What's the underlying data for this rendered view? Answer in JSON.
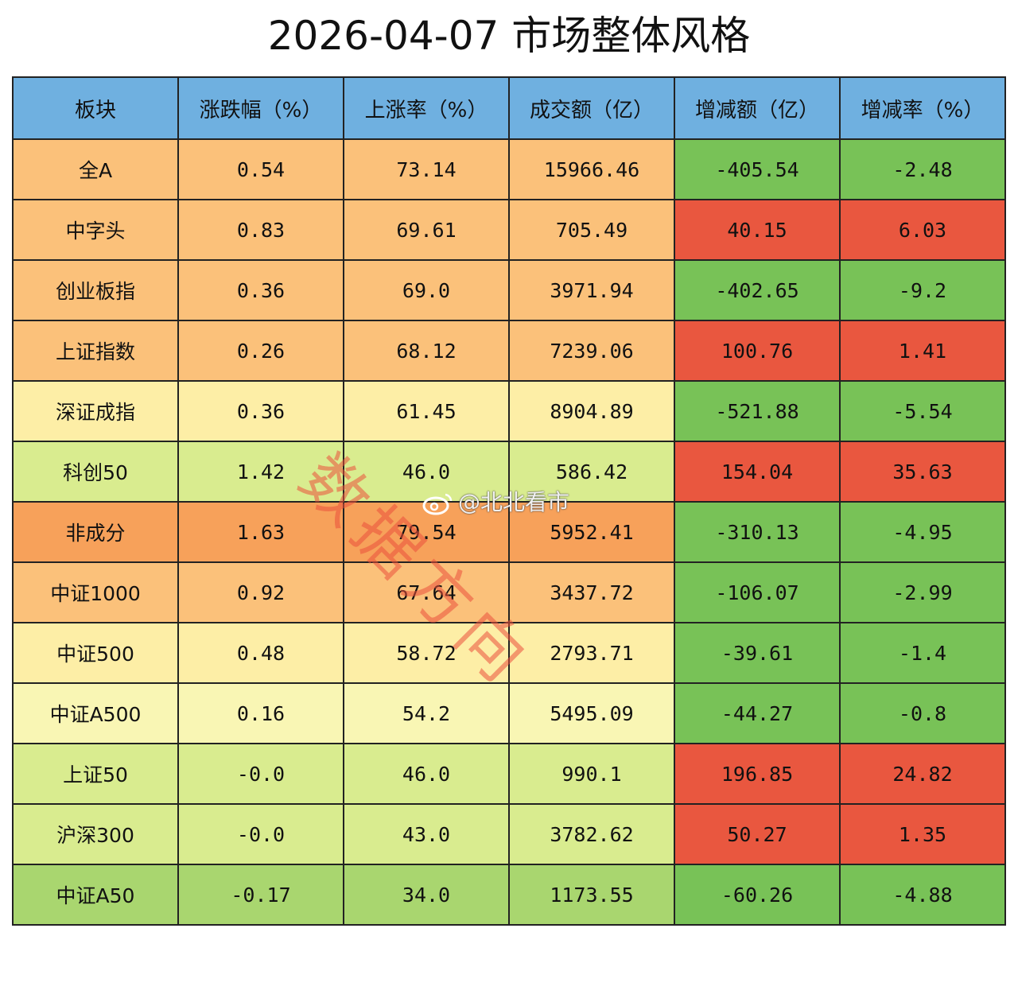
{
  "title": "2026-04-07 市场整体风格",
  "colors": {
    "header_bg": "#6fb0e0",
    "positive_red": "#e9573f",
    "negative_green": "#78c257",
    "orange_dark": "#f7a15a",
    "orange": "#fbc17a",
    "light_yellow": "#fdeea6",
    "pale_yellow": "#f9f6b4",
    "light_green": "#d9ec8f",
    "green": "#a9d66f"
  },
  "chart_data": {
    "type": "table",
    "title": "2026-04-07 市场整体风格",
    "columns": [
      "板块",
      "涨跌幅（%）",
      "上涨率（%）",
      "成交额（亿）",
      "增减额（亿）",
      "增减率（%）"
    ],
    "rows": [
      [
        "全A",
        "0.54",
        "73.14",
        "15966.46",
        "-405.54",
        "-2.48"
      ],
      [
        "中字头",
        "0.83",
        "69.61",
        "705.49",
        "40.15",
        "6.03"
      ],
      [
        "创业板指",
        "0.36",
        "69.0",
        "3971.94",
        "-402.65",
        "-9.2"
      ],
      [
        "上证指数",
        "0.26",
        "68.12",
        "7239.06",
        "100.76",
        "1.41"
      ],
      [
        "深证成指",
        "0.36",
        "61.45",
        "8904.89",
        "-521.88",
        "-5.54"
      ],
      [
        "科创50",
        "1.42",
        "46.0",
        "586.42",
        "154.04",
        "35.63"
      ],
      [
        "非成分",
        "1.63",
        "79.54",
        "5952.41",
        "-310.13",
        "-4.95"
      ],
      [
        "中证1000",
        "0.92",
        "67.64",
        "3437.72",
        "-106.07",
        "-2.99"
      ],
      [
        "中证500",
        "0.48",
        "58.72",
        "2793.71",
        "-39.61",
        "-1.4"
      ],
      [
        "中证A500",
        "0.16",
        "54.2",
        "5495.09",
        "-44.27",
        "-0.8"
      ],
      [
        "上证50",
        "-0.0",
        "46.0",
        "990.1",
        "196.85",
        "24.82"
      ],
      [
        "沪深300",
        "-0.0",
        "43.0",
        "3782.62",
        "50.27",
        "1.35"
      ],
      [
        "中证A50",
        "-0.17",
        "34.0",
        "1173.55",
        "-60.26",
        "-4.88"
      ]
    ],
    "row_colors": [
      "#fbc17a",
      "#fbc17a",
      "#fbc17a",
      "#fbc17a",
      "#fdeea6",
      "#d9ec8f",
      "#f7a15a",
      "#fbc17a",
      "#fdeea6",
      "#f9f6b4",
      "#d9ec8f",
      "#d9ec8f",
      "#a9d66f"
    ]
  },
  "watermark": {
    "diagonal_text": "数据方向",
    "handle": "@北北看市"
  }
}
